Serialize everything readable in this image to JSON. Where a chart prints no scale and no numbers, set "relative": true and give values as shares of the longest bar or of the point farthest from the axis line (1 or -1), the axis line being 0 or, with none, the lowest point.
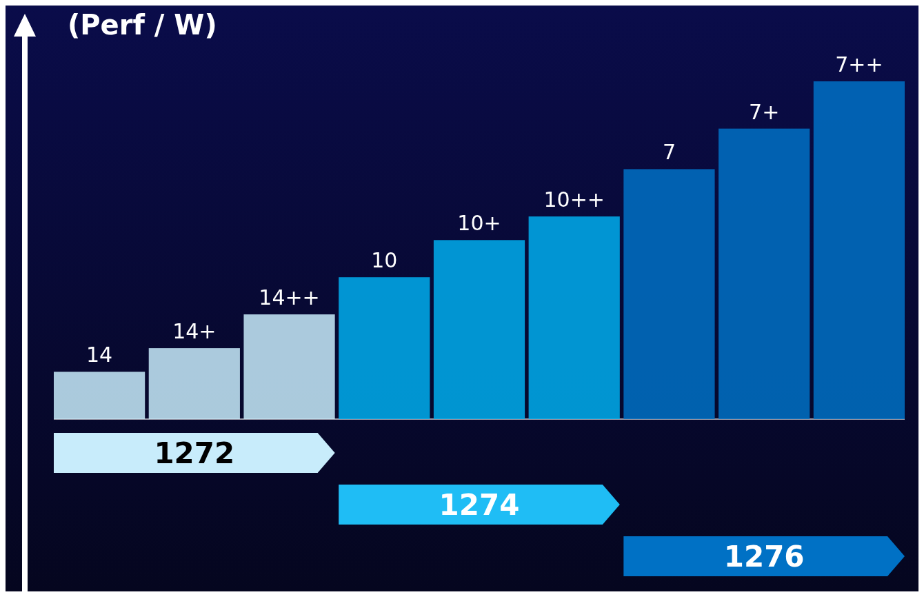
{
  "chart_data": {
    "type": "bar",
    "relative": true,
    "ylabel": "(Perf / W)",
    "categories": [
      "14",
      "14+",
      "14++",
      "10",
      "10+",
      "10++",
      "7",
      "7+",
      "7++"
    ],
    "values": [
      0.14,
      0.21,
      0.31,
      0.42,
      0.53,
      0.6,
      0.74,
      0.86,
      1
    ],
    "colors": [
      "#c8ecfb",
      "#c8ecfb",
      "#c8ecfb",
      "#00aeef",
      "#00aeef",
      "#00aeef",
      "#0071c5",
      "#0071c5",
      "#0071c5"
    ],
    "annotations": [
      "1272",
      "1274",
      "1276"
    ]
  }
}
